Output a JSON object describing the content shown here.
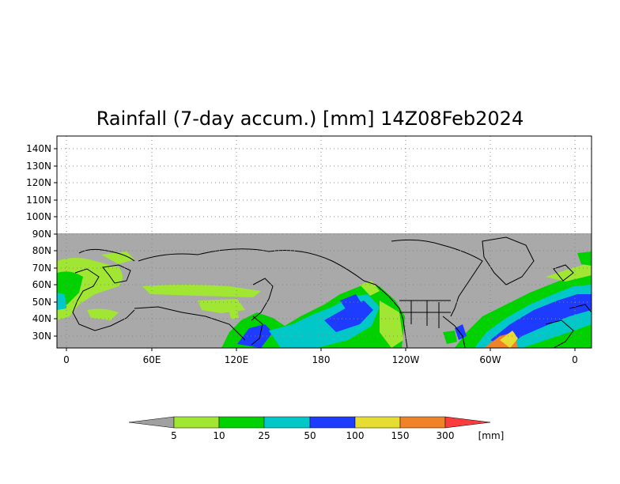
{
  "title": "Rainfall (7-day accum.) [mm] 14Z08Feb2024",
  "map": {
    "projection": "latitude-longitude",
    "lat_ticks": [
      "30N",
      "40N",
      "50N",
      "60N",
      "70N",
      "80N",
      "90N",
      "100N",
      "110N",
      "120N",
      "130N",
      "140N"
    ],
    "lon_ticks": [
      "0",
      "60E",
      "120E",
      "180",
      "120W",
      "60W",
      "0"
    ],
    "no_data_color": "#a9a9a9",
    "coast_color": "#000000",
    "grid": "dotted"
  },
  "legend": {
    "unit": "[mm]",
    "thresholds": [
      "5",
      "10",
      "25",
      "50",
      "100",
      "150",
      "300"
    ],
    "colors": [
      "#a0a0a0",
      "#a0e632",
      "#00d200",
      "#00c8c8",
      "#1e3cff",
      "#e6dc32",
      "#f08228",
      "#fa3c3c"
    ]
  }
}
